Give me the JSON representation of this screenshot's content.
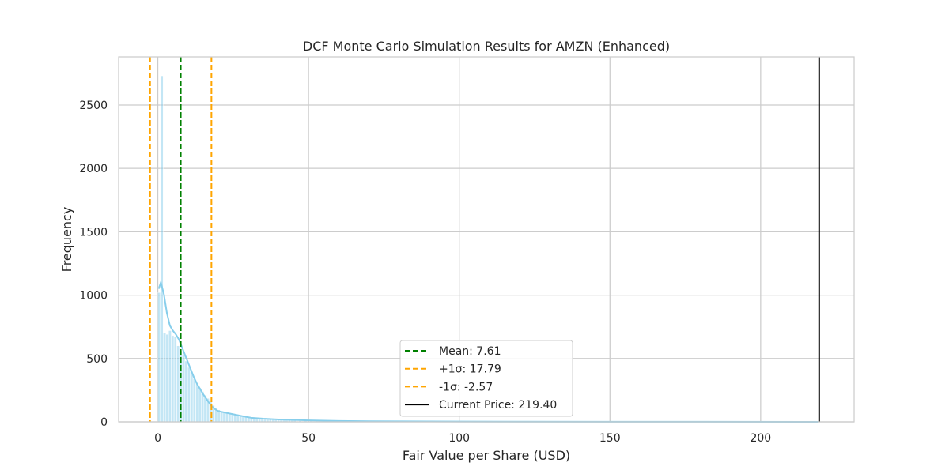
{
  "chart_data": {
    "type": "bar",
    "title": "DCF Monte Carlo Simulation Results for AMZN (Enhanced)",
    "xlabel": "Fair Value per Share (USD)",
    "ylabel": "Frequency",
    "xlim": [
      -13,
      231
    ],
    "ylim": [
      0,
      2880
    ],
    "xticks": [
      0,
      50,
      100,
      150,
      200
    ],
    "yticks": [
      0,
      500,
      1000,
      1500,
      2000,
      2500
    ],
    "grid": true,
    "legend_position": "lower-center",
    "histogram": {
      "color": "#87ceeb",
      "bin_width": 1,
      "bins": [
        [
          0,
          1020
        ],
        [
          0.9,
          2730
        ],
        [
          1.8,
          700
        ],
        [
          2.7,
          690
        ],
        [
          3.6,
          720
        ],
        [
          4.5,
          680
        ],
        [
          5.4,
          670
        ],
        [
          6.3,
          600
        ],
        [
          7.2,
          560
        ],
        [
          8.1,
          530
        ],
        [
          9.0,
          480
        ],
        [
          9.9,
          430
        ],
        [
          10.8,
          380
        ],
        [
          11.7,
          340
        ],
        [
          12.6,
          300
        ],
        [
          13.5,
          270
        ],
        [
          14.4,
          240
        ],
        [
          15.3,
          210
        ],
        [
          16.2,
          185
        ],
        [
          17.1,
          160
        ],
        [
          18.0,
          130
        ],
        [
          18.9,
          110
        ],
        [
          19.8,
          95
        ],
        [
          20.7,
          85
        ],
        [
          21.6,
          78
        ],
        [
          22.5,
          72
        ],
        [
          23.4,
          65
        ],
        [
          24.3,
          60
        ],
        [
          25.2,
          55
        ],
        [
          26.1,
          50
        ],
        [
          27.0,
          45
        ],
        [
          27.9,
          40
        ],
        [
          28.8,
          36
        ],
        [
          29.7,
          33
        ],
        [
          30.6,
          30
        ],
        [
          31.5,
          28
        ],
        [
          32.4,
          25
        ],
        [
          33.3,
          23
        ],
        [
          34.2,
          21
        ],
        [
          35.1,
          19
        ],
        [
          36.0,
          18
        ],
        [
          36.9,
          17
        ],
        [
          37.8,
          16
        ],
        [
          38.7,
          15
        ],
        [
          39.6,
          14
        ],
        [
          40.5,
          13
        ],
        [
          41.4,
          13
        ],
        [
          42.3,
          12
        ],
        [
          43.2,
          11
        ],
        [
          44.1,
          10
        ],
        [
          45.0,
          10
        ],
        [
          46.8,
          9
        ],
        [
          48.6,
          8
        ],
        [
          50.4,
          7
        ],
        [
          52.2,
          7
        ],
        [
          54.0,
          6
        ],
        [
          57.0,
          5
        ],
        [
          60.0,
          5
        ],
        [
          63.0,
          4
        ],
        [
          66.0,
          4
        ],
        [
          70.0,
          3
        ],
        [
          75.0,
          3
        ],
        [
          80.0,
          2
        ],
        [
          85.0,
          2
        ]
      ]
    },
    "kde": {
      "color": "#87ceeb",
      "points": [
        [
          0.3,
          1050
        ],
        [
          1,
          1100
        ],
        [
          2,
          1010
        ],
        [
          3,
          860
        ],
        [
          4,
          760
        ],
        [
          5,
          720
        ],
        [
          6,
          690
        ],
        [
          7,
          650
        ],
        [
          8,
          590
        ],
        [
          9,
          530
        ],
        [
          10,
          470
        ],
        [
          11,
          410
        ],
        [
          12,
          350
        ],
        [
          13,
          300
        ],
        [
          14,
          260
        ],
        [
          15,
          220
        ],
        [
          16,
          185
        ],
        [
          17,
          150
        ],
        [
          18,
          120
        ],
        [
          19,
          100
        ],
        [
          20,
          85
        ],
        [
          22,
          75
        ],
        [
          25,
          60
        ],
        [
          28,
          45
        ],
        [
          31,
          32
        ],
        [
          35,
          25
        ],
        [
          40,
          19
        ],
        [
          45,
          15
        ],
        [
          50,
          12
        ],
        [
          55,
          9
        ],
        [
          60,
          7
        ],
        [
          70,
          5
        ],
        [
          80,
          4
        ],
        [
          90,
          3
        ],
        [
          100,
          2
        ],
        [
          150,
          1
        ],
        [
          219,
          0
        ]
      ]
    },
    "lines": [
      {
        "label": "Mean: 7.61",
        "x": 7.61,
        "color": "#008000",
        "style": "dashed"
      },
      {
        "label": "+1σ: 17.79",
        "x": 17.79,
        "color": "#ffa500",
        "style": "dashed"
      },
      {
        "label": "-1σ: -2.57",
        "x": -2.57,
        "color": "#ffa500",
        "style": "dashed"
      },
      {
        "label": "Current Price: 219.40",
        "x": 219.4,
        "color": "#000000",
        "style": "solid"
      }
    ]
  }
}
